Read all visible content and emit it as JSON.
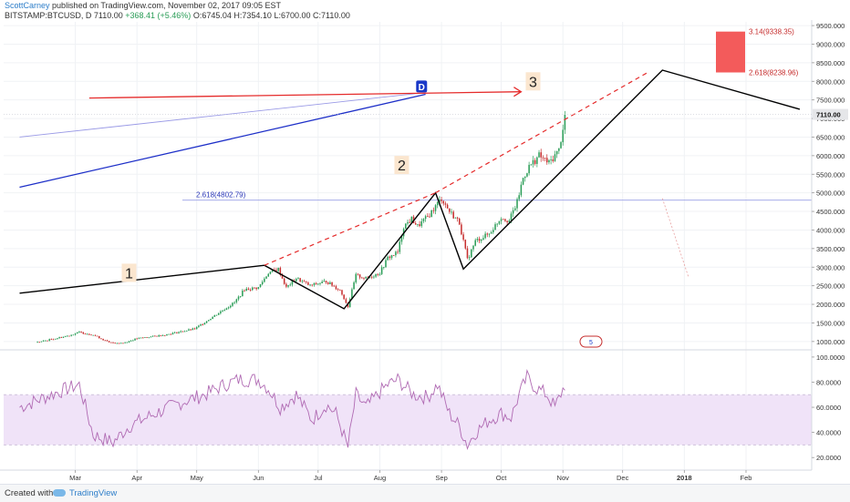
{
  "header": {
    "author": "ScottCarney",
    "published": "published on TradingView.com, November 02, 2017 09:05 EST",
    "symbol": "BITSTAMP:BTCUSD, D",
    "last": "7110.00",
    "change": "+368.41 (+5.46%)",
    "open": "O:6745.04",
    "high": "H:7354.10",
    "low": "L:6700.00",
    "close": "C:7110.00"
  },
  "footer": {
    "created_with": "Created with",
    "brand": "TradingView"
  },
  "colors": {
    "up": "#2a9d57",
    "down": "#c62e2e",
    "pattern": "#000000",
    "target_line": "#e52b2b",
    "projection": "#1d2fc8",
    "projection_faint": "#9a9ae6",
    "fib_line": "#9aa0e6",
    "rsi_line": "#b06ab3",
    "rsi_band": "#f0e3f8",
    "target_box": "#f35b5b"
  },
  "chart_data": [
    {
      "type": "candlestick",
      "title": "BITSTAMP:BTCUSD, D",
      "ylim": [
        800,
        9600
      ],
      "y_ticks": [
        1000,
        1500,
        2000,
        2500,
        3000,
        3500,
        4000,
        4500,
        5000,
        5500,
        6000,
        6500,
        7000,
        7500,
        8000,
        8500,
        9000,
        9500
      ],
      "y_tick_labels": [
        "1000.000",
        "1500.000",
        "2000.000",
        "2500.000",
        "3000.000",
        "3500.000",
        "4000.000",
        "4500.000",
        "5000.000",
        "5500.000",
        "6000.000",
        "6500.000",
        "7000.000",
        "7500.000",
        "8000.000",
        "8500.000",
        "9000.000",
        "9500.000"
      ],
      "x_ticks": [
        "2017-03-01",
        "2017-04-01",
        "2017-05-01",
        "2017-06-01",
        "2017-07-01",
        "2017-08-01",
        "2017-09-01",
        "2017-10-01",
        "2017-11-01",
        "2017-12-01",
        "2018-01-01",
        "2018-02-01"
      ],
      "x_tick_labels": [
        "Mar",
        "Apr",
        "May",
        "Jun",
        "Jul",
        "Aug",
        "Sep",
        "Oct",
        "Nov",
        "Dec",
        "2018",
        "Feb"
      ],
      "last_price": 7110.0,
      "last_price_label": "7110.00",
      "close_path": [
        [
          "2017-02-10",
          980
        ],
        [
          "2017-02-25",
          1150
        ],
        [
          "2017-03-03",
          1250
        ],
        [
          "2017-03-10",
          1180
        ],
        [
          "2017-03-18",
          970
        ],
        [
          "2017-03-25",
          960
        ],
        [
          "2017-04-01",
          1080
        ],
        [
          "2017-04-15",
          1180
        ],
        [
          "2017-04-30",
          1340
        ],
        [
          "2017-05-10",
          1700
        ],
        [
          "2017-05-20",
          2050
        ],
        [
          "2017-05-25",
          2400
        ],
        [
          "2017-06-01",
          2450
        ],
        [
          "2017-06-06",
          2850
        ],
        [
          "2017-06-11",
          2950
        ],
        [
          "2017-06-15",
          2450
        ],
        [
          "2017-06-20",
          2700
        ],
        [
          "2017-06-27",
          2500
        ],
        [
          "2017-07-05",
          2620
        ],
        [
          "2017-07-12",
          2380
        ],
        [
          "2017-07-16",
          1950
        ],
        [
          "2017-07-20",
          2780
        ],
        [
          "2017-07-25",
          2700
        ],
        [
          "2017-08-01",
          2850
        ],
        [
          "2017-08-05",
          3250
        ],
        [
          "2017-08-10",
          3400
        ],
        [
          "2017-08-13",
          4100
        ],
        [
          "2017-08-17",
          4300
        ],
        [
          "2017-08-20",
          4100
        ],
        [
          "2017-08-25",
          4350
        ],
        [
          "2017-09-01",
          4850
        ],
        [
          "2017-09-05",
          4500
        ],
        [
          "2017-09-10",
          4200
        ],
        [
          "2017-09-14",
          3200
        ],
        [
          "2017-09-18",
          3700
        ],
        [
          "2017-09-25",
          3900
        ],
        [
          "2017-10-01",
          4350
        ],
        [
          "2017-10-05",
          4250
        ],
        [
          "2017-10-09",
          4750
        ],
        [
          "2017-10-12",
          5400
        ],
        [
          "2017-10-15",
          5700
        ],
        [
          "2017-10-20",
          6000
        ],
        [
          "2017-10-25",
          5800
        ],
        [
          "2017-10-30",
          6150
        ],
        [
          "2017-11-01",
          6750
        ],
        [
          "2017-11-02",
          7110
        ]
      ],
      "pattern_points": [
        [
          "2017-02-01",
          2300
        ],
        [
          "2017-06-04",
          3050
        ],
        [
          "2017-07-14",
          1880
        ],
        [
          "2017-08-29",
          5000
        ],
        [
          "2017-09-12",
          2950
        ],
        [
          "2017-12-21",
          8300
        ],
        [
          "2018-02-28",
          7250
        ]
      ],
      "pattern_labels": [
        {
          "text": "1",
          "date": "2017-03-28",
          "price": 2800
        },
        {
          "text": "2",
          "date": "2017-08-12",
          "price": 5700
        },
        {
          "text": "3",
          "date": "2017-10-17",
          "price": 7950
        }
      ],
      "d_point": {
        "label": "D",
        "date": "2017-08-22",
        "price": 7850
      },
      "target_arrow": {
        "from": [
          "2017-03-08",
          7550
        ],
        "to": [
          "2017-10-11",
          7720
        ]
      },
      "dashed_uptrends": [
        {
          "from": [
            "2017-06-04",
            3050
          ],
          "to": [
            "2017-08-29",
            5000
          ]
        },
        {
          "from": [
            "2017-08-29",
            5000
          ],
          "to": [
            "2017-12-14",
            8250
          ]
        }
      ],
      "projection_lines": [
        {
          "from": [
            "2017-02-01",
            5150
          ],
          "to": [
            "2017-08-24",
            7650
          ],
          "style": "solid"
        },
        {
          "from": [
            "2017-02-01",
            6500
          ],
          "to": [
            "2017-08-24",
            7700
          ],
          "style": "faint"
        }
      ],
      "fib_level": {
        "label": "2.618(4802.79)",
        "price": 4802.79
      },
      "target_box": {
        "from_price": 8238.96,
        "to_price": 9338.35,
        "upper_label": "3.14(9338.35)",
        "lower_label": "2.618(8238.96)"
      },
      "dotted_projection": {
        "from": [
          "2017-12-21",
          4850
        ],
        "to": [
          "2018-01-03",
          2750
        ]
      }
    },
    {
      "type": "line",
      "title": "RSI",
      "ylim": [
        10,
        105
      ],
      "y_ticks": [
        20,
        40,
        60,
        80,
        100
      ],
      "y_tick_labels": [
        "20.0000",
        "40.0000",
        "60.0000",
        "80.0000",
        "100.0000"
      ],
      "band": [
        30,
        70
      ],
      "x": [
        "2017-02-01",
        "2017-02-20",
        "2017-03-03",
        "2017-03-10",
        "2017-03-20",
        "2017-03-28",
        "2017-04-10",
        "2017-04-25",
        "2017-05-05",
        "2017-05-15",
        "2017-05-22",
        "2017-06-01",
        "2017-06-06",
        "2017-06-12",
        "2017-06-20",
        "2017-06-28",
        "2017-07-05",
        "2017-07-10",
        "2017-07-16",
        "2017-07-20",
        "2017-07-25",
        "2017-08-01",
        "2017-08-05",
        "2017-08-10",
        "2017-08-14",
        "2017-08-18",
        "2017-08-25",
        "2017-08-30",
        "2017-09-05",
        "2017-09-10",
        "2017-09-14",
        "2017-09-18",
        "2017-09-25",
        "2017-10-01",
        "2017-10-06",
        "2017-10-10",
        "2017-10-14",
        "2017-10-18",
        "2017-10-24",
        "2017-10-28",
        "2017-11-02"
      ],
      "values": [
        60,
        72,
        78,
        38,
        32,
        45,
        55,
        65,
        70,
        78,
        82,
        82,
        75,
        60,
        70,
        50,
        62,
        55,
        28,
        70,
        60,
        72,
        78,
        82,
        76,
        70,
        68,
        78,
        55,
        45,
        30,
        40,
        50,
        55,
        52,
        70,
        84,
        76,
        70,
        60,
        78
      ]
    }
  ]
}
